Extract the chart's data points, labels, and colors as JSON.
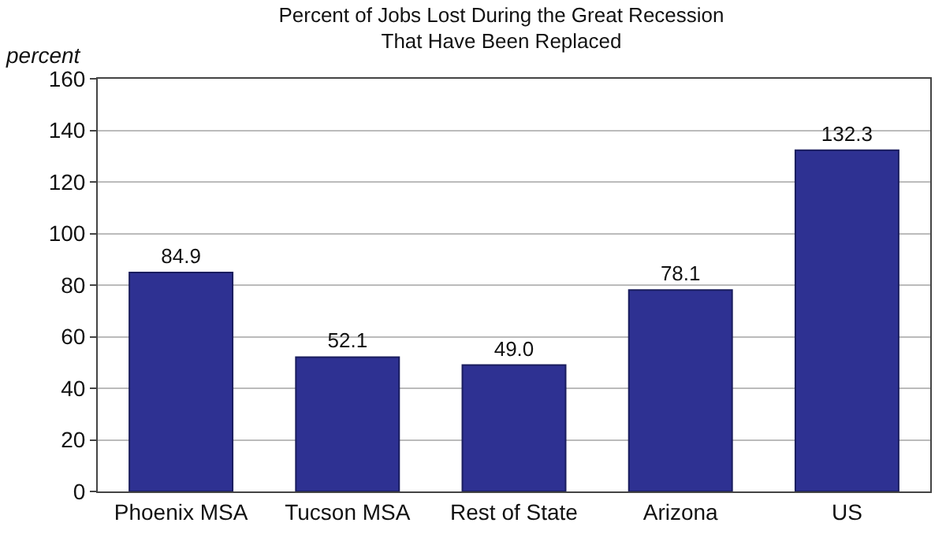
{
  "chart_data": {
    "type": "bar",
    "title": "Percent of Jobs Lost During the Great Recession\nThat Have Been Replaced",
    "ylabel": "percent",
    "categories": [
      "Phoenix MSA",
      "Tucson MSA",
      "Rest of State",
      "Arizona",
      "US"
    ],
    "values": [
      84.9,
      52.1,
      49.0,
      78.1,
      132.3
    ],
    "value_labels": [
      "84.9",
      "52.1",
      "49.0",
      "78.1",
      "132.3"
    ],
    "color": "#2e3192",
    "ylim": [
      0,
      160
    ],
    "yticks": [
      0,
      20,
      40,
      60,
      80,
      100,
      120,
      140,
      160
    ],
    "grid": "y"
  }
}
